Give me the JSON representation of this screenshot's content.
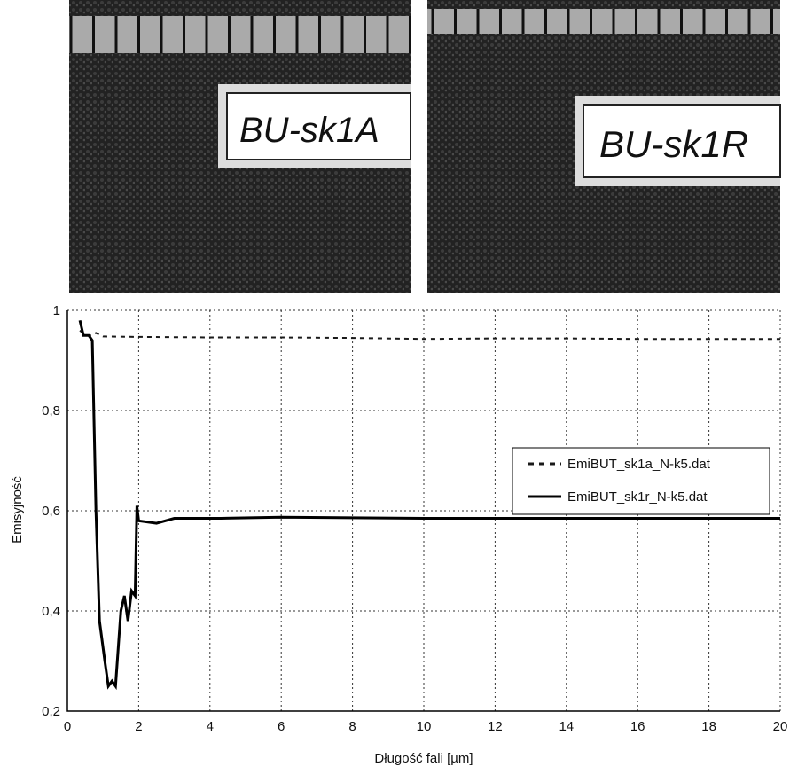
{
  "photos": [
    {
      "label": "BU-sk1A"
    },
    {
      "label": "BU-sk1R"
    }
  ],
  "chart_data": {
    "type": "line",
    "x_label": "Długość fali [µm]",
    "y_label": "Emisyjność",
    "xlim": [
      0,
      20
    ],
    "xticks": [
      0,
      2,
      4,
      6,
      8,
      10,
      12,
      14,
      16,
      18,
      20
    ],
    "ylim": [
      0.2,
      1
    ],
    "yticks": [
      {
        "value": 0.2,
        "label": "0,2"
      },
      {
        "value": 0.4,
        "label": "0,4"
      },
      {
        "value": 0.6,
        "label": "0,6"
      },
      {
        "value": 0.8,
        "label": "0,8"
      },
      1
    ],
    "grid": true,
    "legend": "right",
    "series": [
      {
        "name": "EmiBUT_sk1a_N-k5.dat",
        "color": "#1a1a1a",
        "dash": true,
        "x": [
          0.35,
          0.5,
          0.7,
          0.8,
          1,
          2,
          4,
          6,
          8,
          10,
          12,
          14,
          16,
          18,
          20
        ],
        "values": [
          0.96,
          0.95,
          0.95,
          0.955,
          0.948,
          0.947,
          0.946,
          0.946,
          0.945,
          0.943,
          0.944,
          0.944,
          0.943,
          0.943,
          0.943
        ]
      },
      {
        "name": "EmiBUT_sk1r_N-k5.dat",
        "color": "#000000",
        "dash": false,
        "x": [
          0.35,
          0.45,
          0.6,
          0.7,
          0.8,
          0.9,
          1.05,
          1.15,
          1.25,
          1.35,
          1.5,
          1.6,
          1.7,
          1.8,
          1.9,
          1.95,
          2.0,
          2.5,
          3,
          4.3,
          6,
          10,
          20
        ],
        "values": [
          0.98,
          0.95,
          0.95,
          0.94,
          0.6,
          0.38,
          0.3,
          0.25,
          0.26,
          0.25,
          0.4,
          0.43,
          0.38,
          0.44,
          0.43,
          0.61,
          0.58,
          0.575,
          0.585,
          0.585,
          0.587,
          0.585,
          0.585
        ]
      }
    ]
  }
}
